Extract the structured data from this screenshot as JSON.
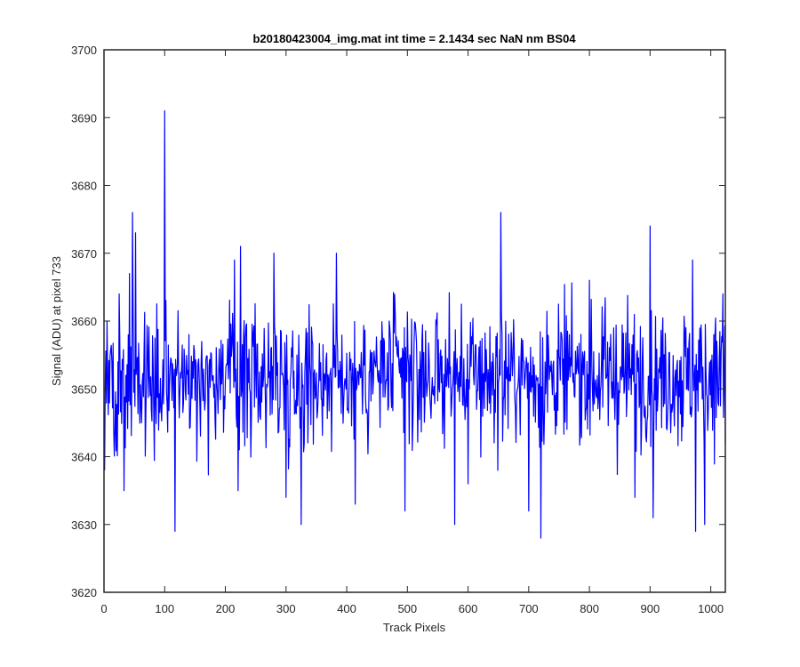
{
  "chart_data": {
    "type": "line",
    "title": "b20180423004_img.mat int time = 2.1434 sec  NaN nm BS04",
    "xlabel": "Track Pixels",
    "ylabel": "Signal (ADU) at pixel 733",
    "xlim": [
      0,
      1024
    ],
    "ylim": [
      3620,
      3700
    ],
    "xticks": [
      0,
      100,
      200,
      300,
      400,
      500,
      600,
      700,
      800,
      900,
      1000
    ],
    "yticks": [
      3620,
      3630,
      3640,
      3650,
      3660,
      3670,
      3680,
      3690,
      3700
    ],
    "grid": false,
    "legend": "none",
    "series": [
      {
        "color": "#0000ff",
        "x_start": 1,
        "x_step": 1,
        "count": 1024,
        "mean": 3652,
        "noise_amplitude": 7,
        "min": 3628,
        "max": 3691,
        "notable_points": [
          {
            "x": 1,
            "y": 3638
          },
          {
            "x": 5,
            "y": 3660
          },
          {
            "x": 25,
            "y": 3664
          },
          {
            "x": 33,
            "y": 3635
          },
          {
            "x": 42,
            "y": 3667
          },
          {
            "x": 47,
            "y": 3676
          },
          {
            "x": 52,
            "y": 3673
          },
          {
            "x": 62,
            "y": 3645
          },
          {
            "x": 100,
            "y": 3691
          },
          {
            "x": 117,
            "y": 3629
          },
          {
            "x": 215,
            "y": 3669
          },
          {
            "x": 221,
            "y": 3635
          },
          {
            "x": 225,
            "y": 3671
          },
          {
            "x": 280,
            "y": 3670
          },
          {
            "x": 300,
            "y": 3634
          },
          {
            "x": 325,
            "y": 3630
          },
          {
            "x": 383,
            "y": 3670
          },
          {
            "x": 414,
            "y": 3633
          },
          {
            "x": 480,
            "y": 3661
          },
          {
            "x": 496,
            "y": 3632
          },
          {
            "x": 578,
            "y": 3630
          },
          {
            "x": 600,
            "y": 3636
          },
          {
            "x": 654,
            "y": 3676
          },
          {
            "x": 700,
            "y": 3632
          },
          {
            "x": 720,
            "y": 3628
          },
          {
            "x": 800,
            "y": 3666
          },
          {
            "x": 875,
            "y": 3634
          },
          {
            "x": 900,
            "y": 3674
          },
          {
            "x": 905,
            "y": 3631
          },
          {
            "x": 970,
            "y": 3669
          },
          {
            "x": 975,
            "y": 3629
          },
          {
            "x": 990,
            "y": 3630
          },
          {
            "x": 1005,
            "y": 3658
          },
          {
            "x": 1020,
            "y": 3664
          },
          {
            "x": 1024,
            "y": 3642
          }
        ]
      }
    ]
  }
}
